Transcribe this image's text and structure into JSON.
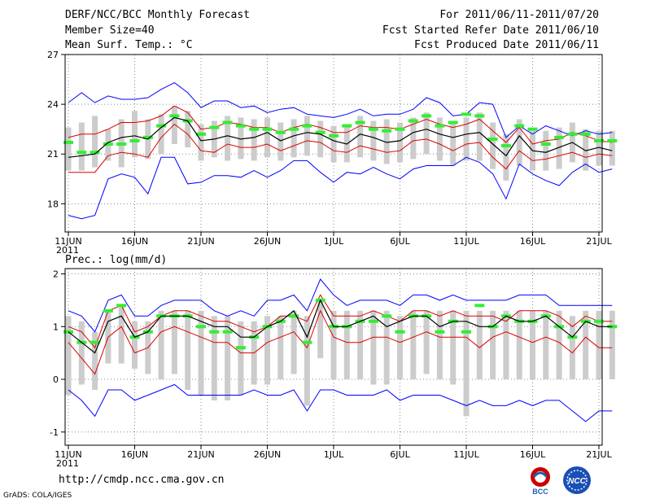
{
  "header": {
    "title": "DERF/NCC/BCC Monthly Forecast",
    "member": "Member Size=40",
    "variable": "Mean Surf. Temp.: °C",
    "period": "For 2011/06/11-2011/07/20",
    "start": "Fcst Started Refer Date 2011/06/10",
    "produced": "Fcst Produced Date 2011/06/11"
  },
  "footer": {
    "url": "http://cmdp.ncc.cma.gov.cn",
    "grads": "GrADS: COLA/IGES",
    "logo1_text": "BCC",
    "logo2_text": "NCC"
  },
  "colors": {
    "envelope": "#0000ff",
    "spread": "#dd0000",
    "mean": "#000000",
    "box": "#cccccc",
    "median": "#33ee33",
    "grid": "#888888"
  },
  "chart_data": [
    {
      "type": "line",
      "title": "Mean Surf. Temp.: °C",
      "x_tick_labels": [
        "11JUN",
        "16JUN",
        "21JUN",
        "26JUN",
        "1JUL",
        "6JUL",
        "11JUL",
        "16JUL",
        "21JUL"
      ],
      "x_year_label": "2011",
      "yticks": [
        18,
        21,
        24,
        27
      ],
      "ylim": [
        16.3,
        27
      ],
      "series": [
        {
          "name": "max",
          "values": [
            24.1,
            24.7,
            24.1,
            24.5,
            24.3,
            24.3,
            24.4,
            24.9,
            25.3,
            24.7,
            23.8,
            24.2,
            24.2,
            23.8,
            23.9,
            23.5,
            23.7,
            23.8,
            23.4,
            23.3,
            23.2,
            23.4,
            23.7,
            23.3,
            23.4,
            23.4,
            23.7,
            24.4,
            24.1,
            23.3,
            23.4,
            24.1,
            24.0,
            22.0,
            22.7,
            22.2,
            22.7,
            22.4,
            22.1,
            22.4,
            22.2,
            22.3
          ]
        },
        {
          "name": "upper",
          "values": [
            22.0,
            22.2,
            22.2,
            22.5,
            22.9,
            22.9,
            23.0,
            23.3,
            23.9,
            23.5,
            22.5,
            22.6,
            22.9,
            22.8,
            22.6,
            22.6,
            22.3,
            22.6,
            22.8,
            22.6,
            22.3,
            22.3,
            22.7,
            22.6,
            22.6,
            22.5,
            22.8,
            23.1,
            22.8,
            22.6,
            22.8,
            23.1,
            22.4,
            21.7,
            22.6,
            21.6,
            21.8,
            21.9,
            22.3,
            22.1,
            21.8,
            21.7
          ]
        },
        {
          "name": "mean",
          "values": [
            20.8,
            20.9,
            21.0,
            21.7,
            22.0,
            22.1,
            21.9,
            22.6,
            23.2,
            23.0,
            21.8,
            21.9,
            22.1,
            21.9,
            22.0,
            22.3,
            21.8,
            22.1,
            22.3,
            22.2,
            21.8,
            21.6,
            22.2,
            22.0,
            21.7,
            21.8,
            22.3,
            22.5,
            22.2,
            22.0,
            22.2,
            22.3,
            21.6,
            20.9,
            22.1,
            21.2,
            21.1,
            21.4,
            21.7,
            21.2,
            21.4,
            21.2
          ]
        },
        {
          "name": "lower",
          "values": [
            19.9,
            19.9,
            19.9,
            20.9,
            21.1,
            21.0,
            20.8,
            22.0,
            22.8,
            22.2,
            21.2,
            21.1,
            21.6,
            21.4,
            21.4,
            21.6,
            21.2,
            21.5,
            21.8,
            21.7,
            21.2,
            21.1,
            21.5,
            21.3,
            21.1,
            21.2,
            21.8,
            21.9,
            21.6,
            21.2,
            21.6,
            21.7,
            20.8,
            20.1,
            21.2,
            20.6,
            20.7,
            20.9,
            21.1,
            20.8,
            21.0,
            20.9
          ]
        },
        {
          "name": "min",
          "values": [
            17.3,
            17.1,
            17.3,
            19.5,
            19.8,
            19.6,
            18.6,
            20.8,
            20.8,
            19.2,
            19.3,
            19.7,
            19.7,
            19.6,
            20.0,
            19.6,
            20.0,
            20.6,
            20.6,
            19.9,
            19.3,
            19.9,
            19.8,
            20.2,
            19.8,
            19.5,
            20.1,
            20.3,
            20.3,
            20.3,
            20.8,
            20.5,
            19.8,
            18.3,
            20.4,
            19.8,
            19.4,
            19.1,
            19.9,
            20.4,
            19.9,
            20.1
          ]
        },
        {
          "name": "box_high",
          "values": [
            22.6,
            22.9,
            23.3,
            22.5,
            23.1,
            23.6,
            23.1,
            23.4,
            23.9,
            23.6,
            22.8,
            23.0,
            23.3,
            23.2,
            23.1,
            23.2,
            22.9,
            23.1,
            23.3,
            23.0,
            22.7,
            22.8,
            23.3,
            23.0,
            23.1,
            22.9,
            23.2,
            23.5,
            23.2,
            23.0,
            23.2,
            23.5,
            22.9,
            22.2,
            23.1,
            22.4,
            22.4,
            22.6,
            22.9,
            22.5,
            22.4,
            22.4
          ]
        },
        {
          "name": "box_low",
          "values": [
            20.0,
            20.0,
            20.2,
            20.6,
            20.2,
            20.8,
            20.7,
            21.0,
            21.6,
            21.4,
            20.6,
            20.8,
            20.6,
            20.7,
            20.6,
            20.8,
            20.6,
            20.8,
            20.9,
            20.8,
            20.5,
            20.5,
            20.8,
            20.6,
            20.4,
            20.5,
            20.7,
            21.0,
            20.6,
            20.3,
            20.6,
            20.6,
            20.1,
            19.4,
            20.3,
            20.0,
            20.0,
            20.1,
            20.5,
            20.0,
            20.3,
            20.3
          ]
        },
        {
          "name": "median",
          "values": [
            21.7,
            21.1,
            21.1,
            21.6,
            21.6,
            21.8,
            22.0,
            22.7,
            23.3,
            23.0,
            22.2,
            22.6,
            22.9,
            22.7,
            22.5,
            22.5,
            22.3,
            22.5,
            22.7,
            22.3,
            22.1,
            22.7,
            22.9,
            22.5,
            22.4,
            22.5,
            23.0,
            23.3,
            22.7,
            22.9,
            23.4,
            23.3,
            21.9,
            21.5,
            22.7,
            22.5,
            21.6,
            22.0,
            22.2,
            22.2,
            21.8,
            21.8
          ]
        }
      ]
    },
    {
      "type": "line",
      "title": "Prec.: log(mm/d)",
      "x_tick_labels": [
        "11JUN",
        "16JUN",
        "21JUN",
        "26JUN",
        "1JUL",
        "6JUL",
        "11JUL",
        "16JUL",
        "21JUL"
      ],
      "x_year_label": "2011",
      "yticks": [
        -1,
        0,
        1,
        2
      ],
      "ylim": [
        -1.25,
        2.1
      ],
      "series": [
        {
          "name": "max",
          "values": [
            1.3,
            1.2,
            0.9,
            1.5,
            1.6,
            1.2,
            1.2,
            1.4,
            1.5,
            1.5,
            1.5,
            1.3,
            1.2,
            1.3,
            1.2,
            1.5,
            1.5,
            1.6,
            1.3,
            1.9,
            1.6,
            1.4,
            1.5,
            1.5,
            1.5,
            1.4,
            1.6,
            1.6,
            1.5,
            1.6,
            1.5,
            1.5,
            1.5,
            1.5,
            1.6,
            1.6,
            1.6,
            1.4,
            1.4,
            1.4,
            1.4,
            1.4
          ]
        },
        {
          "name": "upper",
          "values": [
            1.0,
            0.9,
            0.6,
            1.3,
            1.4,
            0.9,
            1.0,
            1.2,
            1.3,
            1.3,
            1.2,
            1.1,
            1.1,
            1.0,
            0.9,
            1.0,
            1.2,
            1.2,
            1.1,
            1.6,
            1.2,
            1.2,
            1.2,
            1.3,
            1.2,
            1.1,
            1.3,
            1.3,
            1.2,
            1.3,
            1.2,
            1.2,
            1.2,
            1.1,
            1.3,
            1.3,
            1.3,
            1.2,
            1.0,
            1.2,
            1.1,
            1.1
          ]
        },
        {
          "name": "mean",
          "values": [
            0.9,
            0.7,
            0.5,
            1.1,
            1.2,
            0.8,
            0.9,
            1.2,
            1.2,
            1.2,
            1.1,
            1.0,
            1.0,
            0.8,
            0.8,
            1.0,
            1.1,
            1.3,
            0.8,
            1.5,
            1.0,
            1.0,
            1.1,
            1.2,
            1.0,
            1.1,
            1.2,
            1.2,
            1.0,
            1.1,
            1.1,
            1.0,
            1.0,
            1.2,
            1.1,
            1.1,
            1.2,
            1.0,
            0.8,
            1.1,
            1.0,
            1.0
          ]
        },
        {
          "name": "lower",
          "values": [
            0.7,
            0.4,
            0.1,
            0.8,
            1.0,
            0.5,
            0.6,
            0.9,
            1.0,
            0.9,
            0.8,
            0.7,
            0.7,
            0.5,
            0.5,
            0.7,
            0.8,
            0.9,
            0.6,
            1.3,
            0.8,
            0.7,
            0.7,
            0.8,
            0.8,
            0.7,
            0.8,
            0.9,
            0.8,
            0.8,
            0.8,
            0.6,
            0.8,
            0.9,
            0.8,
            0.7,
            0.8,
            0.7,
            0.5,
            0.8,
            0.6,
            0.6
          ]
        },
        {
          "name": "min",
          "values": [
            -0.2,
            -0.4,
            -0.7,
            -0.2,
            -0.2,
            -0.4,
            -0.3,
            -0.2,
            -0.1,
            -0.3,
            -0.3,
            -0.3,
            -0.3,
            -0.3,
            -0.2,
            -0.3,
            -0.3,
            -0.2,
            -0.6,
            -0.2,
            -0.2,
            -0.3,
            -0.3,
            -0.3,
            -0.2,
            -0.4,
            -0.3,
            -0.3,
            -0.3,
            -0.4,
            -0.5,
            -0.4,
            -0.5,
            -0.5,
            -0.4,
            -0.5,
            -0.4,
            -0.4,
            -0.6,
            -0.8,
            -0.6,
            -0.6
          ]
        },
        {
          "name": "box_high",
          "values": [
            1.2,
            1.1,
            0.9,
            1.3,
            1.4,
            1.1,
            1.1,
            1.3,
            1.3,
            1.3,
            1.3,
            1.2,
            1.2,
            1.1,
            1.1,
            1.2,
            1.2,
            1.3,
            1.2,
            1.5,
            1.3,
            1.3,
            1.3,
            1.3,
            1.3,
            1.2,
            1.3,
            1.3,
            1.3,
            1.3,
            1.3,
            1.3,
            1.3,
            1.3,
            1.3,
            1.3,
            1.3,
            1.3,
            1.2,
            1.3,
            1.3,
            1.3
          ]
        },
        {
          "name": "box_low",
          "values": [
            -0.3,
            -0.1,
            -0.2,
            0.3,
            0.3,
            0.2,
            0.1,
            0.0,
            0.1,
            -0.2,
            -0.3,
            -0.4,
            -0.4,
            -0.3,
            -0.1,
            -0.1,
            0.0,
            0.1,
            -0.5,
            0.4,
            0.0,
            0.0,
            0.0,
            -0.1,
            -0.1,
            0.0,
            0.0,
            0.1,
            0.0,
            -0.1,
            -0.7,
            0.0,
            0.0,
            0.0,
            0.0,
            0.0,
            0.0,
            0.0,
            0.0,
            0.0,
            0.0,
            0.0
          ]
        },
        {
          "name": "median",
          "values": [
            0.9,
            0.7,
            0.7,
            1.3,
            1.4,
            0.8,
            0.9,
            1.2,
            1.2,
            1.2,
            1.0,
            0.9,
            0.9,
            0.6,
            0.8,
            1.0,
            1.1,
            1.2,
            0.7,
            1.5,
            1.0,
            1.0,
            1.1,
            1.1,
            1.2,
            0.9,
            1.2,
            1.2,
            0.9,
            1.1,
            0.9,
            1.4,
            1.0,
            1.2,
            1.1,
            1.1,
            1.2,
            1.0,
            0.8,
            1.1,
            1.1,
            1.0
          ]
        }
      ]
    }
  ]
}
